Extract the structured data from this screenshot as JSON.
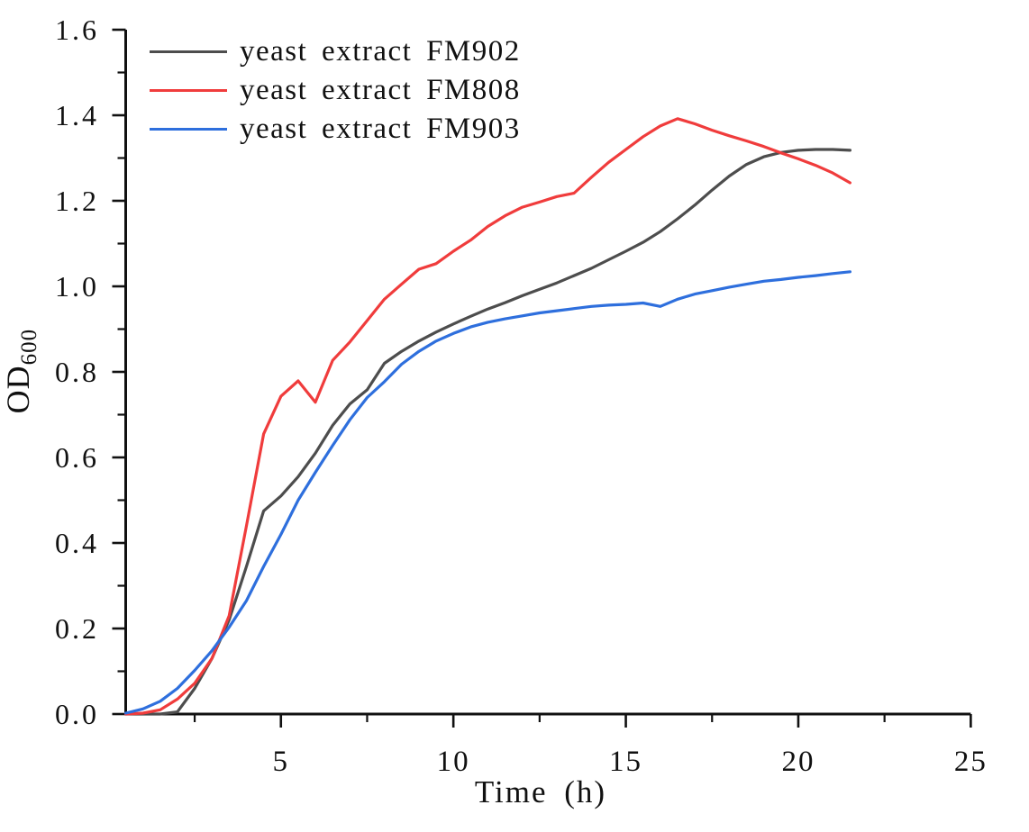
{
  "chart_data": {
    "type": "line",
    "xlabel": "Time (h)",
    "ylabel": "OD",
    "ylabel_subscript": "600",
    "xlim": [
      0.5,
      25
    ],
    "ylim": [
      0,
      1.6
    ],
    "grid": false,
    "legend_position": "top-left-inside",
    "axis_color": "#111111",
    "x_axis": {
      "major_ticks": [
        5,
        10,
        15,
        20,
        25
      ],
      "major_tick_labels": [
        "5",
        "10",
        "15",
        "20",
        "25"
      ],
      "minor_ticks": [
        2.5,
        7.5,
        12.5,
        17.5,
        22.5
      ]
    },
    "y_axis": {
      "major_ticks": [
        0.0,
        0.2,
        0.4,
        0.6,
        0.8,
        1.0,
        1.2,
        1.4,
        1.6
      ],
      "major_tick_labels": [
        "0.0",
        "0.2",
        "0.4",
        "0.6",
        "0.8",
        "1.0",
        "1.2",
        "1.4",
        "1.6"
      ],
      "minor_ticks": [
        0.1,
        0.3,
        0.5,
        0.7,
        0.9,
        1.1,
        1.3,
        1.5
      ]
    },
    "x": [
      0.5,
      1,
      1.5,
      2,
      2.5,
      3,
      3.5,
      4,
      4.5,
      5,
      5.5,
      6,
      6.5,
      7,
      7.5,
      8,
      8.5,
      9,
      9.5,
      10,
      10.5,
      11,
      11.5,
      12,
      12.5,
      13,
      13.5,
      14,
      14.5,
      15,
      15.5,
      16,
      16.5,
      17,
      17.5,
      18,
      18.5,
      19,
      19.5,
      20,
      20.5,
      21,
      21.5
    ],
    "series": [
      {
        "name": "yeast extract FM902",
        "color": "#4d4d4d",
        "values": [
          0,
          0,
          0,
          0.005,
          0.06,
          0.13,
          0.22,
          0.345,
          0.475,
          0.51,
          0.555,
          0.61,
          0.675,
          0.725,
          0.758,
          0.82,
          0.848,
          0.872,
          0.893,
          0.912,
          0.93,
          0.947,
          0.962,
          0.978,
          0.993,
          1.008,
          1.025,
          1.042,
          1.062,
          1.082,
          1.103,
          1.128,
          1.158,
          1.19,
          1.225,
          1.258,
          1.285,
          1.303,
          1.313,
          1.318,
          1.32,
          1.32,
          1.318
        ]
      },
      {
        "name": "yeast extract FM808",
        "color": "#f03c3c",
        "values": [
          0,
          0.002,
          0.01,
          0.035,
          0.072,
          0.13,
          0.23,
          0.44,
          0.655,
          0.743,
          0.779,
          0.729,
          0.827,
          0.87,
          0.92,
          0.97,
          1.005,
          1.04,
          1.053,
          1.082,
          1.108,
          1.14,
          1.165,
          1.185,
          1.197,
          1.21,
          1.218,
          1.255,
          1.29,
          1.32,
          1.35,
          1.375,
          1.392,
          1.38,
          1.365,
          1.352,
          1.34,
          1.327,
          1.312,
          1.298,
          1.283,
          1.265,
          1.242
        ]
      },
      {
        "name": "yeast extract FM903",
        "color": "#2e6fdd",
        "values": [
          0.002,
          0.012,
          0.03,
          0.06,
          0.102,
          0.148,
          0.203,
          0.265,
          0.345,
          0.42,
          0.5,
          0.565,
          0.628,
          0.688,
          0.74,
          0.777,
          0.818,
          0.848,
          0.872,
          0.89,
          0.905,
          0.916,
          0.924,
          0.931,
          0.938,
          0.943,
          0.948,
          0.953,
          0.956,
          0.958,
          0.961,
          0.953,
          0.97,
          0.982,
          0.99,
          0.998,
          1.005,
          1.012,
          1.016,
          1.021,
          1.025,
          1.03,
          1.034
        ]
      }
    ]
  }
}
